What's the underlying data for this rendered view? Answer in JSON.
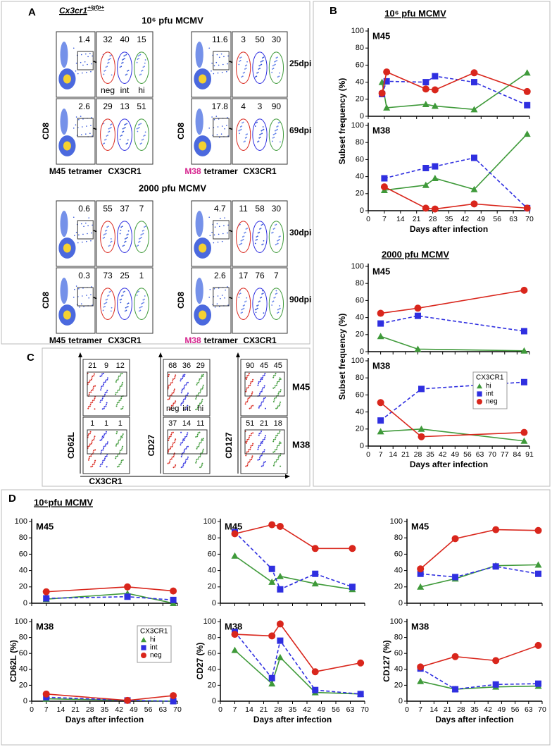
{
  "panel_a": {
    "letter": "A",
    "genotype": {
      "gene": "Cx3cr1",
      "allele": "+/gfp+"
    },
    "subset_labels": [
      "neg",
      "int",
      "hi"
    ],
    "subset_colors": [
      "#d9261c",
      "#2f2fe0",
      "#3f9a3a"
    ],
    "groups": [
      {
        "heading": "10⁶ pfu MCMV",
        "rows": [
          "25dpi",
          "69dpi"
        ],
        "blocks": [
          {
            "ylabel": "CD8",
            "epitope": "M45",
            "epitope_color": "#000000",
            "stain": "tetramer",
            "xlabel": "CX3CR1",
            "cells": [
              {
                "gate": 1.4,
                "subsets": [
                  32,
                  40,
                  15
                ]
              },
              {
                "gate": 2.6,
                "subsets": [
                  29,
                  13,
                  51
                ]
              }
            ]
          },
          {
            "ylabel": "CD8",
            "epitope": "M38",
            "epitope_color": "#d6258f",
            "stain": "tetramer",
            "xlabel": "CX3CR1",
            "cells": [
              {
                "gate": 11.6,
                "subsets": [
                  3,
                  50,
                  30
                ]
              },
              {
                "gate": 17.8,
                "subsets": [
                  4,
                  3,
                  90
                ]
              }
            ]
          }
        ]
      },
      {
        "heading": "2000 pfu MCMV",
        "rows": [
          "30dpi",
          "90dpi"
        ],
        "blocks": [
          {
            "ylabel": "CD8",
            "epitope": "M45",
            "epitope_color": "#000000",
            "stain": "tetramer",
            "xlabel": "CX3CR1",
            "cells": [
              {
                "gate": 0.6,
                "subsets": [
                  55,
                  37,
                  7
                ]
              },
              {
                "gate": 0.3,
                "subsets": [
                  73,
                  25,
                  1
                ]
              }
            ]
          },
          {
            "ylabel": "CD8",
            "epitope": "M38",
            "epitope_color": "#d6258f",
            "stain": "tetramer",
            "xlabel": "CX3CR1",
            "cells": [
              {
                "gate": 4.7,
                "subsets": [
                  11,
                  58,
                  30
                ]
              },
              {
                "gate": 2.6,
                "subsets": [
                  17,
                  76,
                  7
                ]
              }
            ]
          }
        ]
      }
    ]
  },
  "panel_b": {
    "letter": "B",
    "headings": [
      "10⁶ pfu MCMV",
      "2000 pfu MCMV"
    ]
  },
  "panel_c": {
    "letter": "C",
    "xlabel": "CX3CR1",
    "subset_labels": [
      "neg",
      "int",
      "hi"
    ],
    "subset_colors": [
      "#d9261c",
      "#2f2fe0",
      "#3f9a3a"
    ],
    "row_labels": [
      {
        "text": "M45",
        "color": "#000000"
      },
      {
        "text": "M38",
        "color": "#d6258f"
      }
    ],
    "columns": [
      {
        "marker": "CD62L",
        "values": [
          [
            21,
            9,
            12
          ],
          [
            1,
            1,
            1
          ]
        ]
      },
      {
        "marker": "CD27",
        "values": [
          [
            68,
            36,
            29
          ],
          [
            37,
            14,
            11
          ]
        ]
      },
      {
        "marker": "CD127",
        "values": [
          [
            90,
            45,
            45
          ],
          [
            51,
            21,
            18
          ]
        ]
      }
    ]
  },
  "panel_d": {
    "letter": "D",
    "heading": "10⁶pfu MCMV"
  },
  "chart_data": [
    {
      "type": "line",
      "label": "M45",
      "label_color": "#000000",
      "xlim": [
        0,
        70
      ],
      "xticks": [
        0,
        7,
        14,
        21,
        28,
        35,
        42,
        49,
        56,
        63,
        70
      ],
      "show_xtick_labels": false,
      "ylim": [
        0,
        100
      ],
      "yticks": [
        0,
        20,
        40,
        60,
        80,
        100
      ],
      "x": [
        6,
        8,
        25,
        29,
        46,
        69
      ],
      "legend": false,
      "series": [
        {
          "color": "#3f9a3a",
          "marker": "triangle",
          "dash": false,
          "values": [
            40,
            10,
            14,
            12,
            8,
            51
          ]
        },
        {
          "color": "#2f2fe0",
          "marker": "square",
          "dash": true,
          "values": [
            26,
            41,
            40,
            47,
            40,
            13
          ]
        },
        {
          "color": "#d9261c",
          "marker": "circle",
          "dash": false,
          "values": [
            27,
            52,
            32,
            31,
            51,
            29
          ]
        }
      ]
    },
    {
      "type": "line",
      "label": "M38",
      "label_color": "#d6258f",
      "xlim": [
        0,
        70
      ],
      "xticks": [
        0,
        7,
        14,
        21,
        28,
        35,
        42,
        49,
        56,
        63,
        70
      ],
      "ylim": [
        0,
        100
      ],
      "yticks": [
        0,
        20,
        40,
        60,
        80,
        100
      ],
      "x": [
        7,
        25,
        29,
        46,
        69
      ],
      "legend": false,
      "ylabel": "Subset frequency (%)",
      "xlabel": "Days after infection",
      "series": [
        {
          "color": "#3f9a3a",
          "marker": "triangle",
          "dash": false,
          "values": [
            24,
            30,
            38,
            25,
            90
          ]
        },
        {
          "color": "#2f2fe0",
          "marker": "square",
          "dash": true,
          "values": [
            38,
            50,
            52,
            62,
            3
          ]
        },
        {
          "color": "#d9261c",
          "marker": "circle",
          "dash": false,
          "values": [
            28,
            3,
            2,
            8,
            3
          ]
        }
      ]
    },
    {
      "type": "line",
      "label": "M45",
      "label_color": "#000000",
      "xlim": [
        0,
        91
      ],
      "xticks": [
        0,
        7,
        14,
        21,
        28,
        35,
        42,
        49,
        56,
        63,
        70,
        77,
        84,
        91
      ],
      "show_xtick_labels": false,
      "ylim": [
        0,
        100
      ],
      "yticks": [
        0,
        20,
        40,
        60,
        80,
        100
      ],
      "x": [
        7,
        28,
        88
      ],
      "legend": false,
      "series": [
        {
          "color": "#3f9a3a",
          "marker": "triangle",
          "dash": false,
          "values": [
            18,
            3,
            1
          ]
        },
        {
          "color": "#2f2fe0",
          "marker": "square",
          "dash": true,
          "values": [
            33,
            42,
            24
          ]
        },
        {
          "color": "#d9261c",
          "marker": "circle",
          "dash": false,
          "values": [
            45,
            51,
            72
          ]
        }
      ]
    },
    {
      "type": "line",
      "label": "M38",
      "label_color": "#d6258f",
      "xlim": [
        0,
        91
      ],
      "xticks": [
        0,
        7,
        14,
        21,
        28,
        35,
        42,
        49,
        56,
        63,
        70,
        77,
        84,
        91
      ],
      "ylim": [
        0,
        100
      ],
      "yticks": [
        0,
        20,
        40,
        60,
        80,
        100
      ],
      "x": [
        7,
        30,
        88
      ],
      "legend": true,
      "legend_title": "CX3CR1",
      "ylabel": "Subset frequency (%)",
      "xlabel": "Days after infection",
      "series": [
        {
          "name": "hi",
          "color": "#3f9a3a",
          "marker": "triangle",
          "dash": false,
          "values": [
            17,
            20,
            6
          ]
        },
        {
          "name": "int",
          "color": "#2f2fe0",
          "marker": "square",
          "dash": true,
          "values": [
            30,
            67,
            75
          ]
        },
        {
          "name": "neg",
          "color": "#d9261c",
          "marker": "circle",
          "dash": false,
          "values": [
            51,
            11,
            16
          ]
        }
      ]
    },
    {
      "type": "line",
      "label": "M45",
      "label_color": "#000000",
      "xlim": [
        0,
        70
      ],
      "xticks": [
        0,
        7,
        14,
        21,
        28,
        35,
        42,
        49,
        56,
        63,
        70
      ],
      "show_xtick_labels": false,
      "ylim": [
        0,
        100
      ],
      "yticks": [
        0,
        20,
        40,
        60,
        80,
        100
      ],
      "x": [
        7,
        46,
        68
      ],
      "legend": false,
      "series": [
        {
          "color": "#3f9a3a",
          "marker": "triangle",
          "dash": false,
          "values": [
            5,
            12,
            0
          ]
        },
        {
          "color": "#2f2fe0",
          "marker": "square",
          "dash": true,
          "values": [
            6,
            8,
            4
          ]
        },
        {
          "color": "#d9261c",
          "marker": "circle",
          "dash": false,
          "values": [
            14,
            20,
            15
          ]
        }
      ]
    },
    {
      "type": "line",
      "label": "M38",
      "label_color": "#d6258f",
      "xlim": [
        0,
        70
      ],
      "xticks": [
        0,
        7,
        14,
        21,
        28,
        35,
        42,
        49,
        56,
        63,
        70
      ],
      "ylim": [
        0,
        100
      ],
      "yticks": [
        0,
        20,
        40,
        60,
        80,
        100
      ],
      "x": [
        7,
        46,
        68
      ],
      "legend": true,
      "legend_title": "CX3CR1",
      "ylabel": "CD62L (%)",
      "xlabel": "Days after infection",
      "series": [
        {
          "name": "hi",
          "color": "#3f9a3a",
          "marker": "triangle",
          "dash": false,
          "values": [
            3,
            1,
            0
          ]
        },
        {
          "name": "int",
          "color": "#2f2fe0",
          "marker": "square",
          "dash": true,
          "values": [
            5,
            1,
            0
          ]
        },
        {
          "name": "neg",
          "color": "#d9261c",
          "marker": "circle",
          "dash": false,
          "values": [
            9,
            1,
            7
          ]
        }
      ]
    },
    {
      "type": "line",
      "label": "M45",
      "label_color": "#000000",
      "xlim": [
        0,
        70
      ],
      "xticks": [
        0,
        7,
        14,
        21,
        28,
        35,
        42,
        49,
        56,
        63,
        70
      ],
      "show_xtick_labels": false,
      "ylim": [
        0,
        100
      ],
      "yticks": [
        0,
        20,
        40,
        60,
        80,
        100
      ],
      "x": [
        7,
        25,
        29,
        46,
        64
      ],
      "legend": false,
      "series": [
        {
          "color": "#3f9a3a",
          "marker": "triangle",
          "dash": false,
          "values": [
            58,
            26,
            33,
            24,
            17
          ]
        },
        {
          "color": "#2f2fe0",
          "marker": "square",
          "dash": true,
          "values": [
            87,
            42,
            17,
            36,
            20
          ]
        },
        {
          "color": "#d9261c",
          "marker": "circle",
          "dash": false,
          "values": [
            85,
            96,
            94,
            67,
            67
          ]
        }
      ]
    },
    {
      "type": "line",
      "label": "M38",
      "label_color": "#d6258f",
      "xlim": [
        0,
        70
      ],
      "xticks": [
        0,
        7,
        14,
        21,
        28,
        35,
        42,
        49,
        56,
        63,
        70
      ],
      "ylim": [
        0,
        100
      ],
      "yticks": [
        0,
        20,
        40,
        60,
        80,
        100
      ],
      "x": [
        7,
        25,
        29,
        46,
        68
      ],
      "legend": false,
      "ylabel": "CD27 (%)",
      "xlabel": "Days after infection",
      "series": [
        {
          "color": "#3f9a3a",
          "marker": "triangle",
          "dash": false,
          "values": [
            64,
            22,
            55,
            11,
            9
          ]
        },
        {
          "color": "#2f2fe0",
          "marker": "square",
          "dash": true,
          "values": [
            87,
            29,
            76,
            14,
            9
          ]
        },
        {
          "color": "#d9261c",
          "marker": "circle",
          "dash": false,
          "values": [
            84,
            82,
            97,
            37,
            48
          ]
        }
      ]
    },
    {
      "type": "line",
      "label": "M45",
      "label_color": "#000000",
      "xlim": [
        0,
        70
      ],
      "xticks": [
        0,
        7,
        14,
        21,
        28,
        35,
        42,
        49,
        56,
        63,
        70
      ],
      "show_xtick_labels": false,
      "ylim": [
        0,
        100
      ],
      "yticks": [
        0,
        20,
        40,
        60,
        80,
        100
      ],
      "x": [
        7,
        25,
        46,
        68
      ],
      "legend": false,
      "series": [
        {
          "color": "#3f9a3a",
          "marker": "triangle",
          "dash": false,
          "values": [
            20,
            30,
            46,
            47
          ]
        },
        {
          "color": "#2f2fe0",
          "marker": "square",
          "dash": true,
          "values": [
            36,
            32,
            45,
            36
          ]
        },
        {
          "color": "#d9261c",
          "marker": "circle",
          "dash": false,
          "values": [
            42,
            79,
            90,
            89
          ]
        }
      ]
    },
    {
      "type": "line",
      "label": "M38",
      "label_color": "#d6258f",
      "xlim": [
        0,
        70
      ],
      "xticks": [
        0,
        7,
        14,
        21,
        28,
        35,
        42,
        49,
        56,
        63,
        70
      ],
      "ylim": [
        0,
        100
      ],
      "yticks": [
        0,
        20,
        40,
        60,
        80,
        100
      ],
      "x": [
        7,
        25,
        46,
        68
      ],
      "legend": false,
      "ylabel": "CD127 (%)",
      "xlabel": "Days after infection",
      "series": [
        {
          "color": "#3f9a3a",
          "marker": "triangle",
          "dash": false,
          "values": [
            25,
            15,
            18,
            19
          ]
        },
        {
          "color": "#2f2fe0",
          "marker": "square",
          "dash": true,
          "values": [
            41,
            15,
            21,
            22
          ]
        },
        {
          "color": "#d9261c",
          "marker": "circle",
          "dash": false,
          "values": [
            43,
            56,
            51,
            70
          ]
        }
      ]
    }
  ]
}
